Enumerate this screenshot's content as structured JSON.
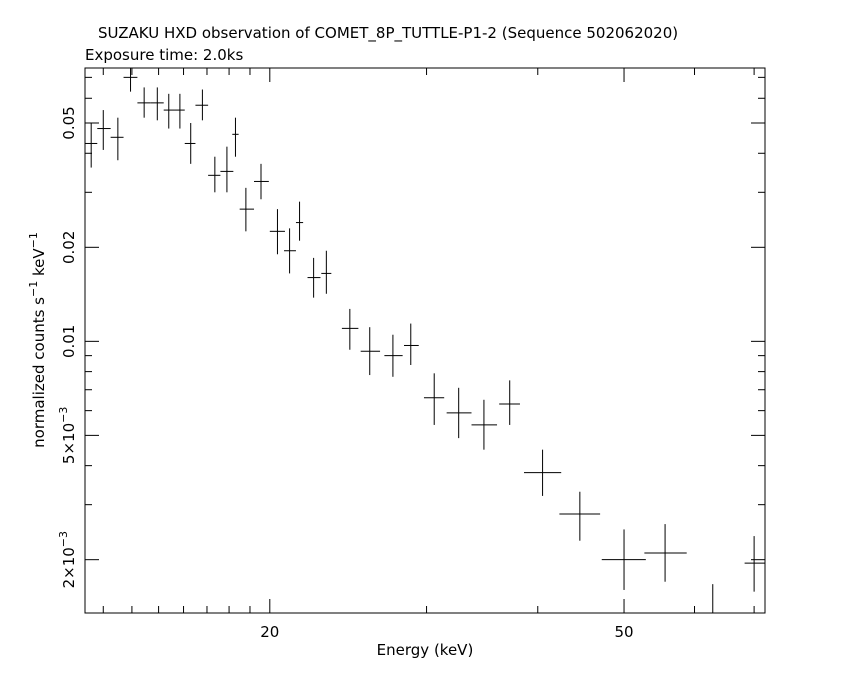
{
  "chart_data": {
    "type": "scatter",
    "title": "SUZAKU HXD observation of COMET_8P_TUTTLE-P1-2 (Sequence 502062020)",
    "subtitle": "Exposure time: 2.0ks",
    "xlabel": "Energy (keV)",
    "ylabel_main": "normalized counts s",
    "ylabel_sup1": "−1",
    "ylabel_mid": " keV",
    "ylabel_sup2": "−1",
    "x_scale": "log",
    "y_scale": "log",
    "xlim": [
      12.4,
      72
    ],
    "ylim": [
      0.00135,
      0.075
    ],
    "x_ticks": [
      {
        "v": 20,
        "label": "20"
      },
      {
        "v": 50,
        "label": "50"
      }
    ],
    "y_ticks": [
      {
        "v": 0.002,
        "base": "2×10",
        "exp": "−3"
      },
      {
        "v": 0.005,
        "base": "5×10",
        "exp": "−3"
      },
      {
        "v": 0.01,
        "label": "0.01"
      },
      {
        "v": 0.02,
        "label": "0.02"
      },
      {
        "v": 0.05,
        "label": "0.05"
      }
    ],
    "grid": false,
    "points": [
      {
        "x": 12.6,
        "xlo": 12.4,
        "xhi": 12.8,
        "y": 0.043,
        "ylo": 0.036,
        "yhi": 0.05
      },
      {
        "x": 13.0,
        "xlo": 12.8,
        "xhi": 13.25,
        "y": 0.048,
        "ylo": 0.041,
        "yhi": 0.055
      },
      {
        "x": 13.5,
        "xlo": 13.25,
        "xhi": 13.7,
        "y": 0.045,
        "ylo": 0.038,
        "yhi": 0.052
      },
      {
        "x": 13.95,
        "xlo": 13.7,
        "xhi": 14.2,
        "y": 0.07,
        "ylo": 0.063,
        "yhi": 0.077
      },
      {
        "x": 14.45,
        "xlo": 14.2,
        "xhi": 14.7,
        "y": 0.058,
        "ylo": 0.052,
        "yhi": 0.065
      },
      {
        "x": 14.95,
        "xlo": 14.7,
        "xhi": 15.2,
        "y": 0.058,
        "ylo": 0.051,
        "yhi": 0.065
      },
      {
        "x": 15.4,
        "xlo": 15.2,
        "xhi": 15.65,
        "y": 0.055,
        "ylo": 0.048,
        "yhi": 0.062
      },
      {
        "x": 15.85,
        "xlo": 15.65,
        "xhi": 16.05,
        "y": 0.055,
        "ylo": 0.048,
        "yhi": 0.062
      },
      {
        "x": 16.3,
        "xlo": 16.05,
        "xhi": 16.5,
        "y": 0.043,
        "ylo": 0.037,
        "yhi": 0.05
      },
      {
        "x": 16.8,
        "xlo": 16.5,
        "xhi": 17.05,
        "y": 0.057,
        "ylo": 0.051,
        "yhi": 0.064
      },
      {
        "x": 17.35,
        "xlo": 17.05,
        "xhi": 17.6,
        "y": 0.034,
        "ylo": 0.03,
        "yhi": 0.039
      },
      {
        "x": 17.9,
        "xlo": 17.6,
        "xhi": 18.2,
        "y": 0.035,
        "ylo": 0.03,
        "yhi": 0.042
      },
      {
        "x": 18.3,
        "xlo": 18.15,
        "xhi": 18.45,
        "y": 0.046,
        "ylo": 0.039,
        "yhi": 0.052
      },
      {
        "x": 18.8,
        "xlo": 18.5,
        "xhi": 19.2,
        "y": 0.0265,
        "ylo": 0.0225,
        "yhi": 0.031
      },
      {
        "x": 19.55,
        "xlo": 19.2,
        "xhi": 19.95,
        "y": 0.0325,
        "ylo": 0.0285,
        "yhi": 0.037
      },
      {
        "x": 20.4,
        "xlo": 20.0,
        "xhi": 20.8,
        "y": 0.0225,
        "ylo": 0.019,
        "yhi": 0.0265
      },
      {
        "x": 21.05,
        "xlo": 20.75,
        "xhi": 21.4,
        "y": 0.0195,
        "ylo": 0.0165,
        "yhi": 0.023
      },
      {
        "x": 21.6,
        "xlo": 21.4,
        "xhi": 21.8,
        "y": 0.024,
        "ylo": 0.021,
        "yhi": 0.028
      },
      {
        "x": 22.4,
        "xlo": 22.05,
        "xhi": 22.8,
        "y": 0.016,
        "ylo": 0.0138,
        "yhi": 0.0185
      },
      {
        "x": 23.15,
        "xlo": 22.85,
        "xhi": 23.45,
        "y": 0.0165,
        "ylo": 0.0142,
        "yhi": 0.0195
      },
      {
        "x": 24.6,
        "xlo": 24.1,
        "xhi": 25.15,
        "y": 0.011,
        "ylo": 0.0094,
        "yhi": 0.0127
      },
      {
        "x": 25.9,
        "xlo": 25.3,
        "xhi": 26.6,
        "y": 0.0093,
        "ylo": 0.0078,
        "yhi": 0.0111
      },
      {
        "x": 27.5,
        "xlo": 26.9,
        "xhi": 28.2,
        "y": 0.009,
        "ylo": 0.0077,
        "yhi": 0.0105
      },
      {
        "x": 28.8,
        "xlo": 28.3,
        "xhi": 29.4,
        "y": 0.0097,
        "ylo": 0.0084,
        "yhi": 0.0114
      },
      {
        "x": 30.6,
        "xlo": 29.8,
        "xhi": 31.4,
        "y": 0.0066,
        "ylo": 0.0054,
        "yhi": 0.0079
      },
      {
        "x": 32.6,
        "xlo": 31.6,
        "xhi": 33.7,
        "y": 0.0059,
        "ylo": 0.0049,
        "yhi": 0.0071
      },
      {
        "x": 34.8,
        "xlo": 33.7,
        "xhi": 36.0,
        "y": 0.0054,
        "ylo": 0.0045,
        "yhi": 0.0065
      },
      {
        "x": 37.2,
        "xlo": 36.2,
        "xhi": 38.2,
        "y": 0.0063,
        "ylo": 0.0054,
        "yhi": 0.0075
      },
      {
        "x": 40.5,
        "xlo": 38.6,
        "xhi": 42.5,
        "y": 0.0038,
        "ylo": 0.0032,
        "yhi": 0.0045
      },
      {
        "x": 44.6,
        "xlo": 42.3,
        "xhi": 47.0,
        "y": 0.0028,
        "ylo": 0.0023,
        "yhi": 0.0033
      },
      {
        "x": 50.0,
        "xlo": 47.2,
        "xhi": 52.9,
        "y": 0.002,
        "ylo": 0.0016,
        "yhi": 0.0025
      },
      {
        "x": 55.6,
        "xlo": 52.7,
        "xhi": 58.8,
        "y": 0.0021,
        "ylo": 0.0017,
        "yhi": 0.0026
      },
      {
        "x": 62.9,
        "xlo": 59.2,
        "xhi": 66.9,
        "y": 0.00135,
        "ylo": 0.00122,
        "yhi": 0.00167
      },
      {
        "x": 70.0,
        "xlo": 68.3,
        "xhi": 72.0,
        "y": 0.00195,
        "ylo": 0.00158,
        "yhi": 0.00238
      }
    ]
  }
}
